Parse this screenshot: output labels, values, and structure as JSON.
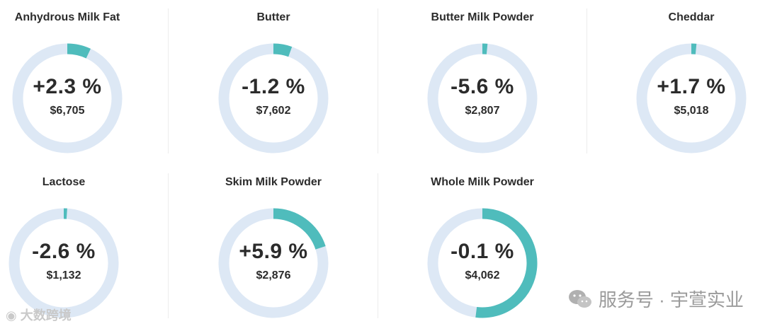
{
  "chart_data": {
    "type": "gauge",
    "items": [
      {
        "name": "Anhydrous Milk Fat",
        "change_label": "+2.3 %",
        "price": "$6,705",
        "change": 2.3
      },
      {
        "name": "Butter",
        "change_label": "-1.2 %",
        "price": "$7,602",
        "change": -1.2
      },
      {
        "name": "Butter Milk Powder",
        "change_label": "-5.6 %",
        "price": "$2,807",
        "change": -5.6
      },
      {
        "name": "Cheddar",
        "change_label": "+1.7 %",
        "price": "$5,018",
        "change": 1.7
      },
      {
        "name": "Lactose",
        "change_label": "-2.6 %",
        "price": "$1,132",
        "change": -2.6
      },
      {
        "name": "Skim Milk Powder",
        "change_label": "+5.9 %",
        "price": "$2,876",
        "change": 5.9
      },
      {
        "name": "Whole Milk Powder",
        "change_label": "-0.1 %",
        "price": "$4,062",
        "change": -0.1
      }
    ],
    "arc_fraction": [
      0.07,
      0.055,
      0.015,
      0.015,
      0.01,
      0.2,
      0.52
    ]
  },
  "colors": {
    "arc": "#4fbcbc",
    "track": "#dde8f5"
  },
  "watermark": {
    "left": "大数跨境",
    "right": "服务号 · 宇萱实业"
  },
  "icons": {
    "left": "weibo-icon",
    "right": "wechat-icon"
  }
}
